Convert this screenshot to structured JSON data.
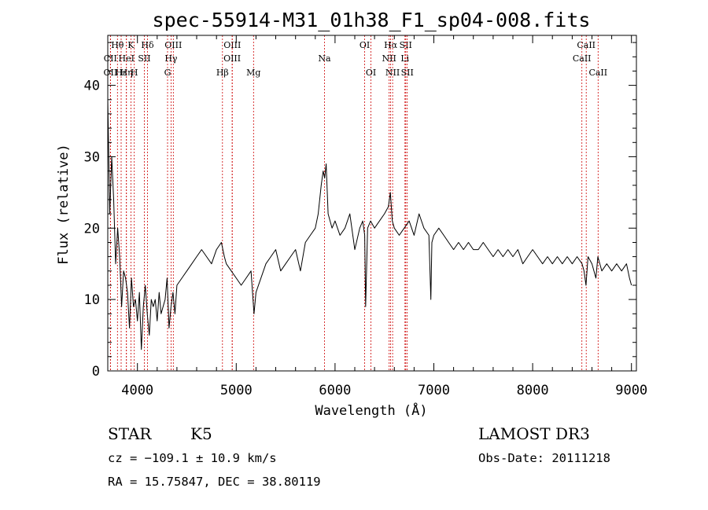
{
  "chart_data": {
    "type": "line",
    "title": "spec-55914-M31_01h38_F1_sp04-008.fits",
    "xlabel": "Wavelength (Å)",
    "ylabel": "Flux (relative)",
    "xlim": [
      3700,
      9050
    ],
    "ylim": [
      0,
      47
    ],
    "xticks": [
      4000,
      5000,
      6000,
      7000,
      8000,
      9000
    ],
    "yticks": [
      0,
      10,
      20,
      30,
      40
    ],
    "series": [
      {
        "name": "spectrum",
        "x": [
          3700,
          3720,
          3740,
          3760,
          3780,
          3800,
          3820,
          3840,
          3860,
          3880,
          3900,
          3920,
          3940,
          3960,
          3980,
          4000,
          4020,
          4040,
          4060,
          4080,
          4100,
          4120,
          4140,
          4160,
          4180,
          4200,
          4220,
          4240,
          4260,
          4280,
          4300,
          4320,
          4340,
          4360,
          4380,
          4400,
          4450,
          4500,
          4550,
          4600,
          4650,
          4700,
          4750,
          4800,
          4850,
          4880,
          4900,
          4950,
          5000,
          5050,
          5100,
          5150,
          5180,
          5200,
          5250,
          5300,
          5350,
          5400,
          5450,
          5500,
          5550,
          5600,
          5650,
          5700,
          5750,
          5800,
          5830,
          5860,
          5880,
          5895,
          5910,
          5930,
          5950,
          5970,
          6000,
          6050,
          6100,
          6150,
          6200,
          6250,
          6280,
          6300,
          6310,
          6330,
          6360,
          6400,
          6450,
          6500,
          6540,
          6560,
          6580,
          6600,
          6650,
          6700,
          6750,
          6800,
          6850,
          6900,
          6950,
          6970,
          6980,
          7000,
          7050,
          7100,
          7150,
          7200,
          7250,
          7300,
          7350,
          7400,
          7450,
          7500,
          7550,
          7600,
          7650,
          7700,
          7750,
          7800,
          7850,
          7900,
          7950,
          8000,
          8050,
          8100,
          8150,
          8200,
          8250,
          8300,
          8350,
          8400,
          8450,
          8500,
          8520,
          8540,
          8560,
          8600,
          8640,
          8660,
          8700,
          8750,
          8800,
          8850,
          8900,
          8950,
          8980,
          9000
        ],
        "y": [
          38,
          22,
          30,
          24,
          15,
          20,
          16,
          9,
          14,
          13,
          11,
          6,
          13,
          9,
          10,
          7,
          11,
          3,
          9,
          12,
          8,
          5,
          10,
          9,
          10,
          7,
          11,
          8,
          9,
          10,
          13,
          6,
          9,
          11,
          8,
          12,
          13,
          14,
          15,
          16,
          17,
          16,
          15,
          17,
          18,
          16,
          15,
          14,
          13,
          12,
          13,
          14,
          8,
          11,
          13,
          15,
          16,
          17,
          14,
          15,
          16,
          17,
          14,
          18,
          19,
          20,
          22,
          26,
          28,
          27,
          29,
          22,
          21,
          20,
          21,
          19,
          20,
          22,
          17,
          20,
          21,
          19,
          9,
          20,
          21,
          20,
          21,
          22,
          23,
          25,
          21,
          20,
          19,
          20,
          21,
          19,
          22,
          20,
          19,
          10,
          18,
          19,
          20,
          19,
          18,
          17,
          18,
          17,
          18,
          17,
          17,
          18,
          17,
          16,
          17,
          16,
          17,
          16,
          17,
          15,
          16,
          17,
          16,
          15,
          16,
          15,
          16,
          15,
          16,
          15,
          16,
          15,
          14,
          12,
          16,
          15,
          13,
          16,
          14,
          15,
          14,
          15,
          14,
          15,
          13,
          12
        ]
      }
    ],
    "line_markers": [
      {
        "label": "Hθ",
        "wl": 3798,
        "row": 1
      },
      {
        "label": "K",
        "wl": 3934,
        "row": 1
      },
      {
        "label": "Hδ",
        "wl": 4102,
        "row": 1
      },
      {
        "label": "OIII",
        "wl": 4363,
        "row": 1
      },
      {
        "label": "OIII",
        "wl": 4960,
        "row": 1
      },
      {
        "label": "OI",
        "wl": 6300,
        "row": 1
      },
      {
        "label": "Hα",
        "wl": 6563,
        "row": 1
      },
      {
        "label": "SII",
        "wl": 6716,
        "row": 1
      },
      {
        "label": "CaII",
        "wl": 8542,
        "row": 1
      },
      {
        "label": "CII",
        "wl": 3726,
        "row": 2
      },
      {
        "label": "HeI",
        "wl": 3889,
        "row": 2
      },
      {
        "label": "SII",
        "wl": 4070,
        "row": 2
      },
      {
        "label": "Hγ",
        "wl": 4340,
        "row": 2
      },
      {
        "label": "OIII",
        "wl": 4959,
        "row": 2
      },
      {
        "label": "Na",
        "wl": 5893,
        "row": 2
      },
      {
        "label": "NII",
        "wl": 6548,
        "row": 2
      },
      {
        "label": "Li",
        "wl": 6708,
        "row": 2
      },
      {
        "label": "CaII",
        "wl": 8498,
        "row": 2
      },
      {
        "label": "OII",
        "wl": 3727,
        "row": 3
      },
      {
        "label": "Hε",
        "wl": 3835,
        "row": 3
      },
      {
        "label": "Hη",
        "wl": 3889,
        "row": 3
      },
      {
        "label": "H",
        "wl": 3968,
        "row": 3
      },
      {
        "label": "G",
        "wl": 4305,
        "row": 3
      },
      {
        "label": "Hβ",
        "wl": 4861,
        "row": 3
      },
      {
        "label": "Mg",
        "wl": 5175,
        "row": 3
      },
      {
        "label": "OI",
        "wl": 6364,
        "row": 3
      },
      {
        "label": "NII",
        "wl": 6583,
        "row": 3
      },
      {
        "label": "SII",
        "wl": 6731,
        "row": 3
      },
      {
        "label": "CaII",
        "wl": 8662,
        "row": 3
      }
    ]
  },
  "info": {
    "class_label": "STAR",
    "subclass": "K5",
    "survey": "LAMOST DR3",
    "cz": "cz = −109.1 ± 10.9 km/s",
    "obs_date": "Obs-Date: 20111218",
    "coords": "RA =  15.75847, DEC =  38.80119"
  },
  "colors": {
    "spectrum": "#000000",
    "marker_line": "#cc0000",
    "background": "#ffffff"
  }
}
